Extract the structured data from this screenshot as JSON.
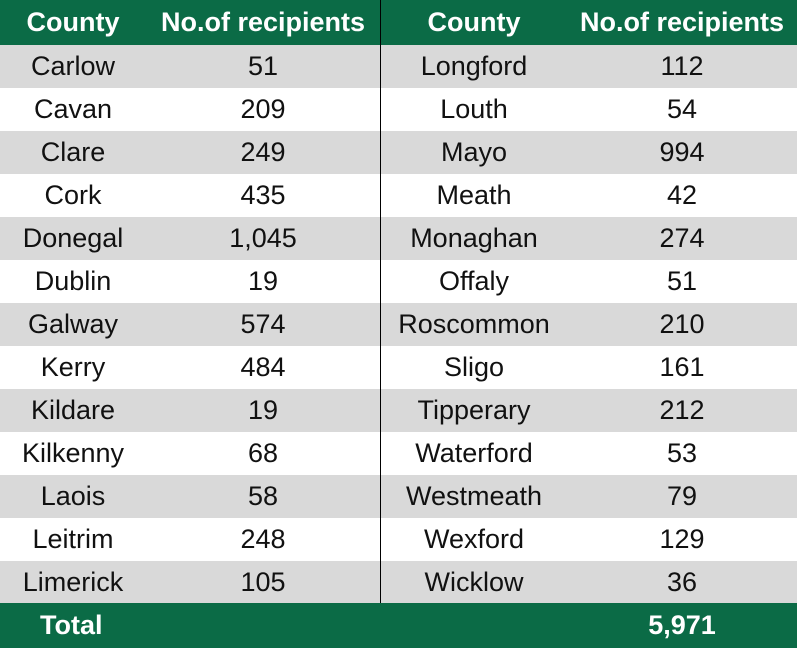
{
  "colors": {
    "header_bg": "#0b6b46",
    "stripe": "#d9d9d9",
    "header_text": "#ffffff"
  },
  "headers": {
    "county_left": "County",
    "recipients_left": "No.of recipients",
    "county_right": "County",
    "recipients_right": "No.of recipients"
  },
  "rows": [
    {
      "left_county": "Carlow",
      "left_count": "51",
      "right_county": "Longford",
      "right_count": "112"
    },
    {
      "left_county": "Cavan",
      "left_count": "209",
      "right_county": "Louth",
      "right_count": "54"
    },
    {
      "left_county": "Clare",
      "left_count": "249",
      "right_county": "Mayo",
      "right_count": "994"
    },
    {
      "left_county": "Cork",
      "left_count": "435",
      "right_county": "Meath",
      "right_count": "42"
    },
    {
      "left_county": "Donegal",
      "left_count": "1,045",
      "right_county": "Monaghan",
      "right_count": "274"
    },
    {
      "left_county": "Dublin",
      "left_count": "19",
      "right_county": "Offaly",
      "right_count": "51"
    },
    {
      "left_county": "Galway",
      "left_count": "574",
      "right_county": "Roscommon",
      "right_count": "210"
    },
    {
      "left_county": "Kerry",
      "left_count": "484",
      "right_county": "Sligo",
      "right_count": "161"
    },
    {
      "left_county": "Kildare",
      "left_count": "19",
      "right_county": "Tipperary",
      "right_count": "212"
    },
    {
      "left_county": "Kilkenny",
      "left_count": "68",
      "right_county": "Waterford",
      "right_count": "53"
    },
    {
      "left_county": "Laois",
      "left_count": "58",
      "right_county": "Westmeath",
      "right_count": "79"
    },
    {
      "left_county": "Leitrim",
      "left_count": "248",
      "right_county": "Wexford",
      "right_count": "129"
    },
    {
      "left_county": "Limerick",
      "left_count": "105",
      "right_county": "Wicklow",
      "right_count": "36"
    }
  ],
  "total": {
    "label": "Total",
    "value": "5,971"
  }
}
